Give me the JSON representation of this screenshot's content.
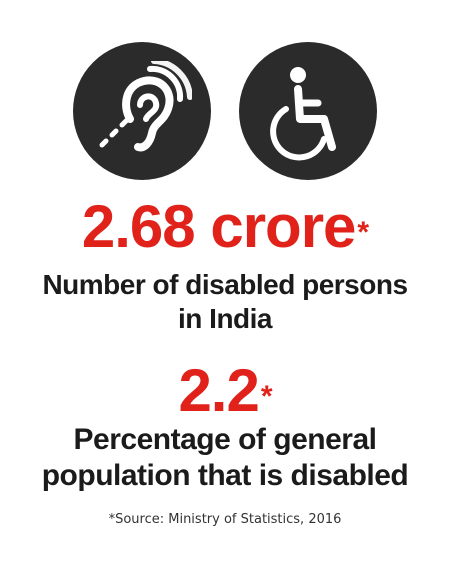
{
  "icons": [
    "hearing-impaired-icon",
    "wheelchair-icon"
  ],
  "stats": [
    {
      "value": "2.68 crore",
      "asterisk": "*",
      "label_line1": "Number of disabled persons",
      "label_line2": "in India"
    },
    {
      "value": "2.2",
      "asterisk": "*",
      "label_line1": "Percentage of general",
      "label_line2": "population that is disabled"
    }
  ],
  "source": "*Source: Ministry of Statistics, 2016",
  "colors": {
    "accent": "#e0221b",
    "text": "#1b1b1b",
    "icon_bg": "#2b2b2b",
    "icon_fg": "#ffffff"
  }
}
